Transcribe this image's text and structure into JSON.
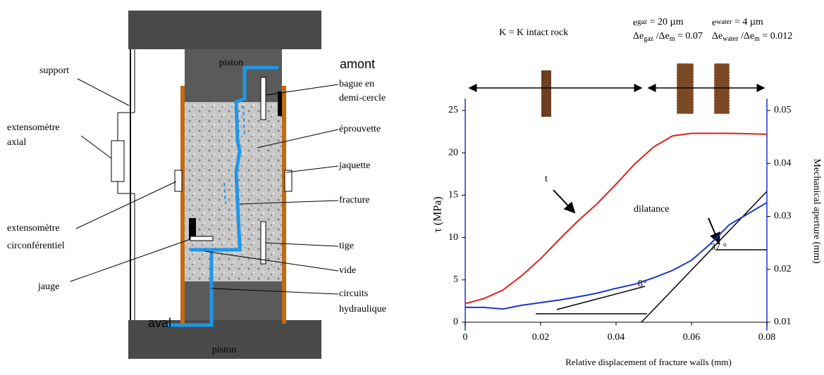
{
  "diagram": {
    "labels": [
      "piston",
      "amont",
      "support",
      "bague en",
      "demi-cercle",
      "extensomètre",
      "axial",
      "éprouvette",
      "jaquette",
      "fracture",
      "extensomètre",
      "circonférentiel",
      "jauge",
      "tige",
      "vide",
      "aval",
      "circuits",
      "hydraulique",
      "piston"
    ]
  },
  "chart_data": {
    "type": "line",
    "x_label": "Relative displacement of fracture walls (mm)",
    "y_label": "τ  (MPa)",
    "y2_label": "Mechanical aperture (mm)",
    "annotations": {
      "intact": "K = K intact rock",
      "egaz": [
        "e",
        "gaz",
        " = 20 µm"
      ],
      "degaz": [
        "Δe",
        "gaz",
        " /Δe",
        "m",
        " = 0.07"
      ],
      "ewater": [
        "e",
        "water",
        " = 4 µm"
      ],
      "dewater": [
        "Δe",
        "water",
        " /Δe",
        "m",
        " = 0.012"
      ],
      "t": "t",
      "dilatance": "dilatance",
      "a37": "37 °",
      "a8": "8°"
    },
    "xlim": [
      0,
      0.08
    ],
    "xticks": [
      0,
      0.02,
      0.04,
      0.06,
      0.08
    ],
    "ylim": [
      0,
      25
    ],
    "yticks": [
      0,
      5,
      10,
      15,
      20,
      25
    ],
    "y2lim": [
      0.01,
      0.05
    ],
    "y2ticks": [
      0.01,
      0.02,
      0.03,
      0.04,
      0.05
    ],
    "series": [
      {
        "color": "#e0201b",
        "x": [
          0,
          0.005,
          0.01,
          0.015,
          0.02,
          0.025,
          0.03,
          0.035,
          0.04,
          0.045,
          0.05,
          0.055,
          0.06,
          0.07,
          0.08
        ],
        "values": [
          2.2,
          2.8,
          3.8,
          5.5,
          7.5,
          9.8,
          12,
          14,
          16.3,
          18.7,
          20.7,
          22,
          22.3,
          22.3,
          22.2
        ]
      },
      {
        "color": "#1a35d0",
        "axis": "y2",
        "x": [
          0,
          0.005,
          0.01,
          0.015,
          0.02,
          0.025,
          0.03,
          0.035,
          0.04,
          0.045,
          0.05,
          0.055,
          0.06,
          0.065,
          0.07,
          0.075,
          0.08
        ],
        "values": [
          0.0128,
          0.0128,
          0.0125,
          0.0132,
          0.0137,
          0.0142,
          0.0148,
          0.0155,
          0.0164,
          0.0172,
          0.0184,
          0.0198,
          0.0217,
          0.0248,
          0.0284,
          0.0305,
          0.0326
        ]
      }
    ]
  }
}
